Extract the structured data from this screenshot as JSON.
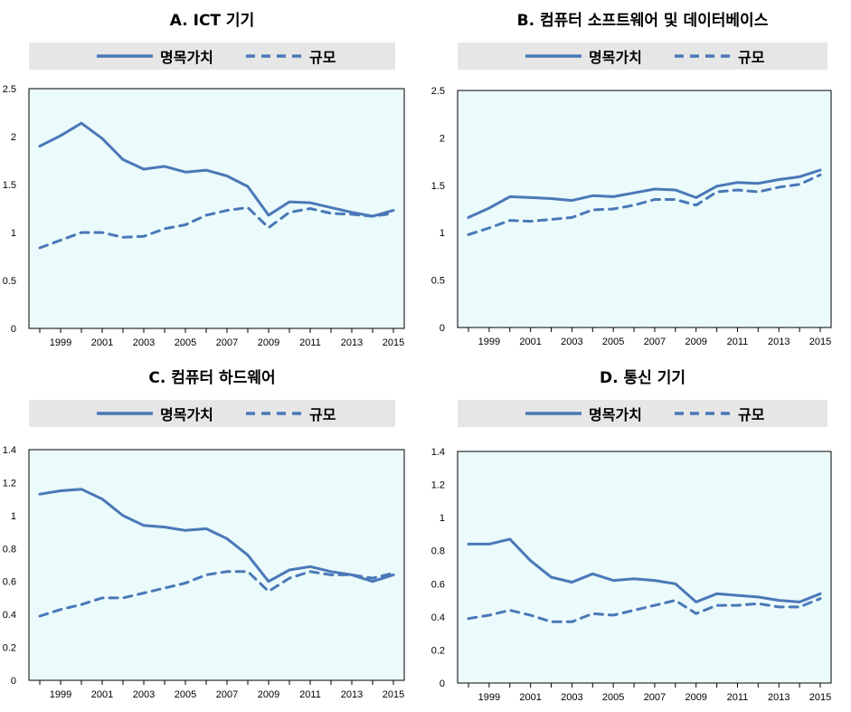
{
  "legend": {
    "nominal": "명목가치",
    "volume": "규모"
  },
  "colors": {
    "line": "#4a78b8",
    "plot_bg": "#ebfafa",
    "legend_bg": "#e6e6e6"
  },
  "chart_data": [
    {
      "type": "line",
      "title": "A. ICT 기기",
      "x": [
        1998,
        1999,
        2000,
        2001,
        2002,
        2003,
        2004,
        2005,
        2006,
        2007,
        2008,
        2009,
        2010,
        2011,
        2012,
        2013,
        2014,
        2015
      ],
      "xticks": [
        "1999",
        "2001",
        "2003",
        "2005",
        "2007",
        "2009",
        "2011",
        "2013",
        "2015"
      ],
      "yticks": [
        "0",
        "0.5",
        "1",
        "1.5",
        "2",
        "2.5"
      ],
      "ylim": [
        0,
        2.5
      ],
      "series": [
        {
          "name": "명목가치",
          "style": "solid",
          "values": [
            1.9,
            2.01,
            2.14,
            1.98,
            1.76,
            1.66,
            1.69,
            1.63,
            1.65,
            1.59,
            1.48,
            1.18,
            1.32,
            1.31,
            1.26,
            1.21,
            1.17,
            1.23
          ]
        },
        {
          "name": "규모",
          "style": "dashed",
          "values": [
            0.84,
            0.92,
            1.0,
            1.0,
            0.95,
            0.96,
            1.04,
            1.08,
            1.18,
            1.23,
            1.26,
            1.05,
            1.21,
            1.25,
            1.2,
            1.19,
            1.17,
            1.2
          ]
        }
      ]
    },
    {
      "type": "line",
      "title": "B. 컴퓨터 소프트웨어 및 데이터베이스",
      "x": [
        1998,
        1999,
        2000,
        2001,
        2002,
        2003,
        2004,
        2005,
        2006,
        2007,
        2008,
        2009,
        2010,
        2011,
        2012,
        2013,
        2014,
        2015
      ],
      "xticks": [
        "1999",
        "2001",
        "2003",
        "2005",
        "2007",
        "2009",
        "2011",
        "2013",
        "2015"
      ],
      "yticks": [
        "0",
        "0.5",
        "1",
        "1.5",
        "2",
        "2.5"
      ],
      "ylim": [
        0,
        2.5
      ],
      "series": [
        {
          "name": "명목가치",
          "style": "solid",
          "values": [
            1.16,
            1.26,
            1.38,
            1.37,
            1.36,
            1.34,
            1.39,
            1.38,
            1.42,
            1.46,
            1.45,
            1.37,
            1.49,
            1.53,
            1.52,
            1.56,
            1.59,
            1.66
          ]
        },
        {
          "name": "규모",
          "style": "dashed",
          "values": [
            0.98,
            1.05,
            1.13,
            1.12,
            1.14,
            1.16,
            1.24,
            1.25,
            1.29,
            1.35,
            1.35,
            1.29,
            1.43,
            1.45,
            1.43,
            1.48,
            1.51,
            1.61
          ]
        }
      ]
    },
    {
      "type": "line",
      "title": "C. 컴퓨터 하드웨어",
      "x": [
        1998,
        1999,
        2000,
        2001,
        2002,
        2003,
        2004,
        2005,
        2006,
        2007,
        2008,
        2009,
        2010,
        2011,
        2012,
        2013,
        2014,
        2015
      ],
      "xticks": [
        "1999",
        "2001",
        "2003",
        "2005",
        "2007",
        "2009",
        "2011",
        "2013",
        "2015"
      ],
      "yticks": [
        "0",
        "0.2",
        "0.4",
        "0.6",
        "0.8",
        "1",
        "1.2",
        "1.4"
      ],
      "ylim": [
        0,
        1.4
      ],
      "series": [
        {
          "name": "명목가치",
          "style": "solid",
          "values": [
            1.13,
            1.15,
            1.16,
            1.1,
            1.0,
            0.94,
            0.93,
            0.91,
            0.92,
            0.86,
            0.76,
            0.6,
            0.67,
            0.69,
            0.66,
            0.64,
            0.6,
            0.64
          ]
        },
        {
          "name": "규모",
          "style": "dashed",
          "values": [
            0.39,
            0.43,
            0.46,
            0.5,
            0.5,
            0.53,
            0.56,
            0.59,
            0.64,
            0.66,
            0.66,
            0.54,
            0.62,
            0.66,
            0.64,
            0.64,
            0.62,
            0.65
          ]
        }
      ]
    },
    {
      "type": "line",
      "title": "D. 통신 기기",
      "x": [
        1998,
        1999,
        2000,
        2001,
        2002,
        2003,
        2004,
        2005,
        2006,
        2007,
        2008,
        2009,
        2010,
        2011,
        2012,
        2013,
        2014,
        2015
      ],
      "xticks": [
        "1999",
        "2001",
        "2003",
        "2005",
        "2007",
        "2009",
        "2011",
        "2013",
        "2015"
      ],
      "yticks": [
        "0",
        "0.2",
        "0.4",
        "0.6",
        "0.8",
        "1",
        "1.2",
        "1.4"
      ],
      "ylim": [
        0,
        1.4
      ],
      "series": [
        {
          "name": "명목가치",
          "style": "solid",
          "values": [
            0.84,
            0.84,
            0.87,
            0.74,
            0.64,
            0.61,
            0.66,
            0.62,
            0.63,
            0.62,
            0.6,
            0.49,
            0.54,
            0.53,
            0.52,
            0.5,
            0.49,
            0.54
          ]
        },
        {
          "name": "규모",
          "style": "dashed",
          "values": [
            0.39,
            0.41,
            0.44,
            0.41,
            0.37,
            0.37,
            0.42,
            0.41,
            0.44,
            0.47,
            0.5,
            0.42,
            0.47,
            0.47,
            0.48,
            0.46,
            0.46,
            0.51
          ]
        }
      ]
    }
  ]
}
